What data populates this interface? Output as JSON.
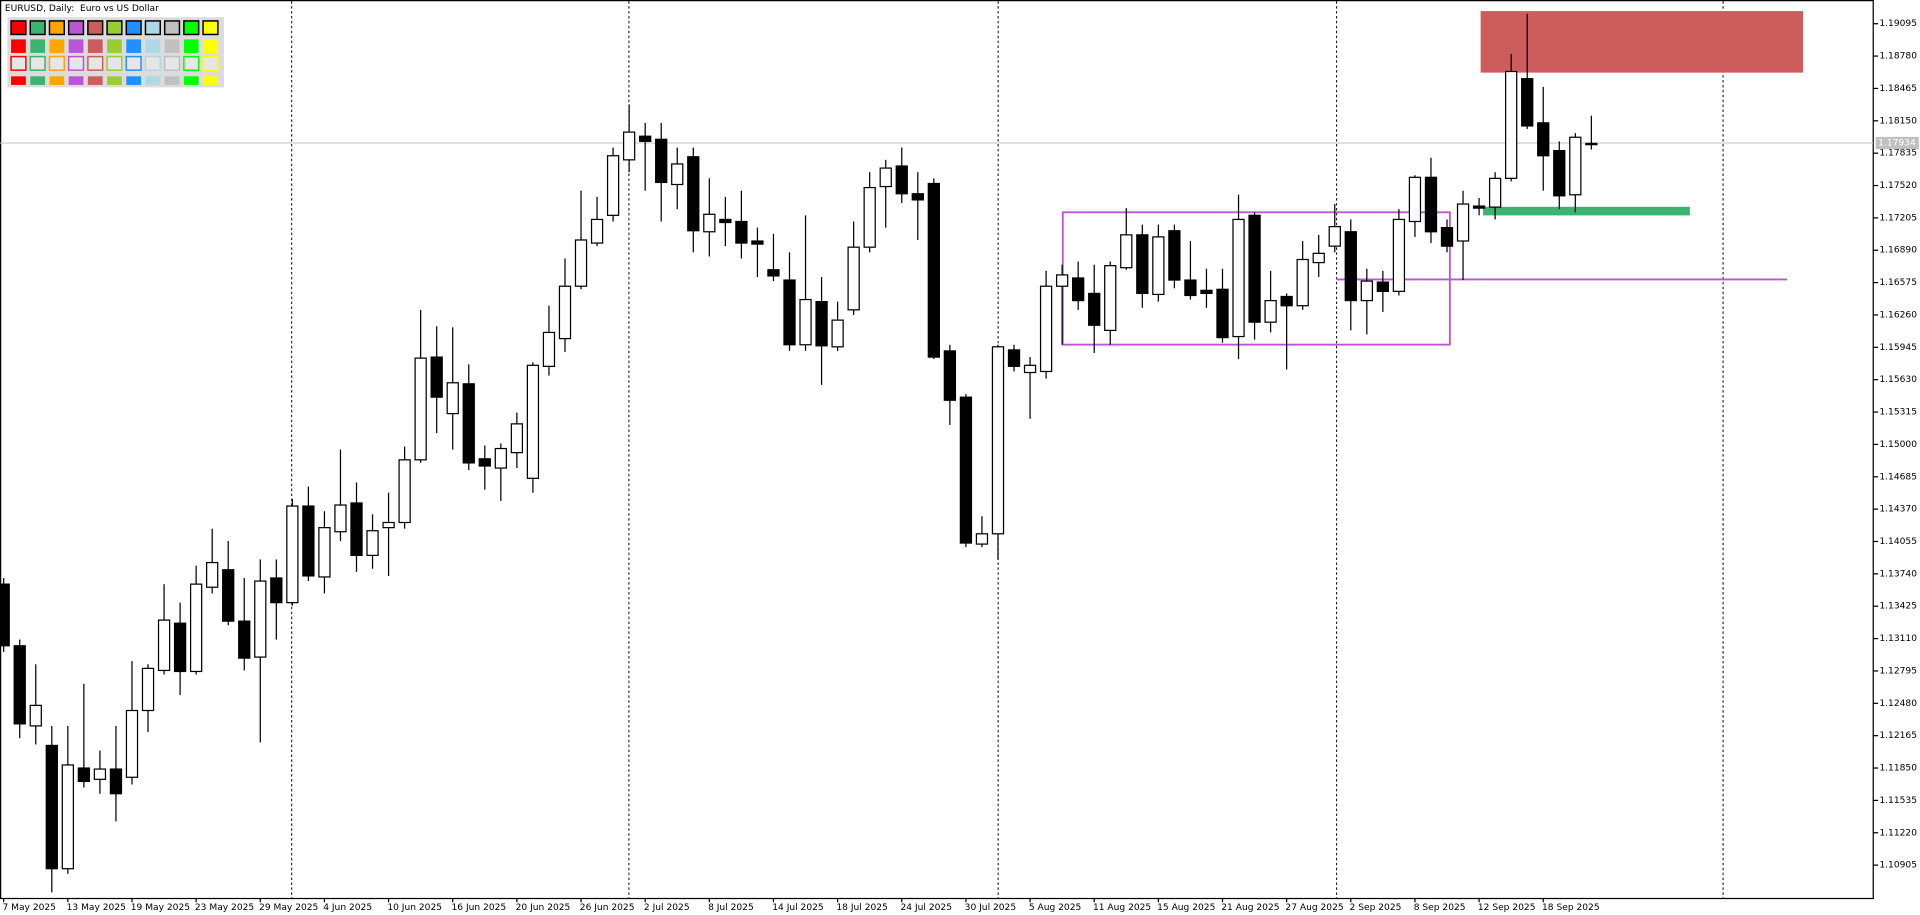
{
  "chart_data": {
    "type": "candlestick",
    "title": "EURUSD, Daily:  Euro vs US Dollar",
    "categories": [
      "7 May 2025",
      null,
      null,
      null,
      "13 May 2025",
      null,
      null,
      null,
      "19 May 2025",
      null,
      null,
      null,
      "23 May 2025",
      null,
      null,
      null,
      "29 May 2025",
      null,
      null,
      null,
      "4 Jun 2025",
      null,
      null,
      null,
      "10 Jun 2025",
      null,
      null,
      null,
      "16 Jun 2025",
      null,
      null,
      null,
      "20 Jun 2025",
      null,
      null,
      null,
      "26 Jun 2025",
      null,
      null,
      null,
      "2 Jul 2025",
      null,
      null,
      null,
      "8 Jul 2025",
      null,
      null,
      null,
      "14 Jul 2025",
      null,
      null,
      null,
      "18 Jul 2025",
      null,
      null,
      null,
      "24 Jul 2025",
      null,
      null,
      null,
      "30 Jul 2025",
      null,
      null,
      null,
      "5 Aug 2025",
      null,
      null,
      null,
      "11 Aug 2025",
      null,
      null,
      null,
      "15 Aug 2025",
      null,
      null,
      null,
      "21 Aug 2025",
      null,
      null,
      null,
      "27 Aug 2025",
      null,
      null,
      null,
      "2 Sep 2025",
      null,
      null,
      null,
      "8 Sep 2025",
      null,
      null,
      null,
      "12 Sep 2025",
      null,
      null,
      null,
      "18 Sep 2025",
      null,
      null,
      null
    ],
    "open": [
      1.1364,
      1.1304,
      1.1226,
      1.1207,
      1.1087,
      1.1185,
      1.1174,
      1.1184,
      1.1176,
      1.1241,
      1.128,
      1.1326,
      1.1279,
      1.1361,
      1.1378,
      1.1328,
      1.1293,
      1.137,
      1.1346,
      1.144,
      1.1371,
      1.1415,
      1.1443,
      1.1392,
      1.1419,
      1.1424,
      1.1485,
      1.1585,
      1.153,
      1.1559,
      1.1486,
      1.1477,
      1.1492,
      1.1467,
      1.1576,
      1.1603,
      1.1654,
      1.1696,
      1.1723,
      1.1777,
      1.18,
      1.1797,
      1.1753,
      1.178,
      1.1707,
      1.1719,
      1.1717,
      1.1698,
      1.167,
      1.166,
      1.1597,
      1.1639,
      1.1595,
      1.1631,
      1.1692,
      1.1751,
      1.1771,
      1.1744,
      1.1754,
      1.1591,
      1.1546,
      1.1403,
      1.1413,
      1.1592,
      1.157,
      1.1571,
      1.1654,
      1.1662,
      1.1647,
      1.1611,
      1.1672,
      1.1704,
      1.1646,
      1.1708,
      1.166,
      1.165,
      1.1651,
      1.1605,
      1.1723,
      1.1619,
      1.1644,
      1.1635,
      1.1677,
      1.1693,
      1.1707,
      1.164,
      1.1658,
      1.1649,
      1.1717,
      1.176,
      1.1711,
      1.1698,
      1.1732,
      1.1731,
      1.1759,
      1.1856,
      1.1813,
      1.1786,
      1.1743,
      1.1792
    ],
    "high": [
      1.137,
      1.131,
      1.1286,
      1.1226,
      1.1226,
      1.1267,
      1.1202,
      1.1226,
      1.1289,
      1.1286,
      1.1364,
      1.1346,
      1.1382,
      1.1418,
      1.1406,
      1.137,
      1.1388,
      1.1388,
      1.1447,
      1.1459,
      1.1435,
      1.1495,
      1.1463,
      1.1432,
      1.1453,
      1.1498,
      1.1631,
      1.1615,
      1.1614,
      1.1578,
      1.1499,
      1.1501,
      1.1531,
      1.158,
      1.1635,
      1.1681,
      1.1747,
      1.1741,
      1.1789,
      1.1831,
      1.1813,
      1.1813,
      1.1789,
      1.1789,
      1.1759,
      1.1741,
      1.1747,
      1.1711,
      1.1705,
      1.1687,
      1.1723,
      1.1663,
      1.1639,
      1.1717,
      1.1765,
      1.1777,
      1.1789,
      1.1765,
      1.1759,
      1.1597,
      1.1549,
      1.143,
      1.1597,
      1.1597,
      1.1585,
      1.1669,
      1.1675,
      1.1678,
      1.1675,
      1.1678,
      1.173,
      1.1714,
      1.1714,
      1.1714,
      1.1698,
      1.1671,
      1.1671,
      1.1743,
      1.1726,
      1.1669,
      1.1647,
      1.1698,
      1.1704,
      1.1734,
      1.1719,
      1.1671,
      1.1669,
      1.1729,
      1.1762,
      1.1779,
      1.1719,
      1.1747,
      1.174,
      1.1765,
      1.188,
      1.1919,
      1.1848,
      1.1795,
      1.1803,
      1.182
    ],
    "low": [
      1.1298,
      1.1214,
      1.1208,
      1.1064,
      1.1082,
      1.1166,
      1.116,
      1.1133,
      1.1169,
      1.122,
      1.1276,
      1.1256,
      1.1276,
      1.1355,
      1.1324,
      1.128,
      1.121,
      1.131,
      1.1343,
      1.1367,
      1.1355,
      1.1406,
      1.1376,
      1.1379,
      1.1372,
      1.1418,
      1.1482,
      1.1511,
      1.1495,
      1.1475,
      1.1456,
      1.1445,
      1.1477,
      1.1453,
      1.1567,
      1.159,
      1.1651,
      1.1693,
      1.1717,
      1.1765,
      1.1747,
      1.1717,
      1.1729,
      1.1687,
      1.1683,
      1.1693,
      1.1681,
      1.1663,
      1.1659,
      1.1591,
      1.1591,
      1.1558,
      1.1591,
      1.1626,
      1.1687,
      1.1711,
      1.1735,
      1.1699,
      1.1583,
      1.1519,
      1.14,
      1.14,
      1.1388,
      1.1571,
      1.1525,
      1.1564,
      1.1597,
      1.1631,
      1.1589,
      1.1597,
      1.167,
      1.1633,
      1.1639,
      1.1652,
      1.1641,
      1.1633,
      1.1599,
      1.1583,
      1.1602,
      1.1609,
      1.1573,
      1.1631,
      1.1663,
      1.1687,
      1.1611,
      1.1607,
      1.1629,
      1.1645,
      1.1702,
      1.1696,
      1.1687,
      1.166,
      1.1723,
      1.1719,
      1.1756,
      1.1807,
      1.1747,
      1.1729,
      1.1726,
      1.1787
    ],
    "close": [
      1.1304,
      1.1228,
      1.1246,
      1.1087,
      1.1188,
      1.1172,
      1.1184,
      1.116,
      1.1241,
      1.1282,
      1.1329,
      1.1279,
      1.1364,
      1.1385,
      1.1328,
      1.1292,
      1.1367,
      1.1346,
      1.144,
      1.1372,
      1.1419,
      1.1441,
      1.1392,
      1.1416,
      1.1424,
      1.1485,
      1.1584,
      1.1546,
      1.156,
      1.1482,
      1.1479,
      1.1496,
      1.152,
      1.1577,
      1.1609,
      1.1654,
      1.1699,
      1.1719,
      1.1781,
      1.1804,
      1.1795,
      1.1755,
      1.1773,
      1.1708,
      1.1724,
      1.1716,
      1.1696,
      1.1695,
      1.1664,
      1.1597,
      1.1641,
      1.1596,
      1.1621,
      1.1692,
      1.175,
      1.1769,
      1.1744,
      1.1738,
      1.1585,
      1.1543,
      1.1404,
      1.1413,
      1.1595,
      1.1576,
      1.1577,
      1.1654,
      1.1665,
      1.164,
      1.1616,
      1.1674,
      1.1704,
      1.1647,
      1.1702,
      1.166,
      1.1645,
      1.1647,
      1.1604,
      1.1719,
      1.1619,
      1.164,
      1.1635,
      1.168,
      1.1686,
      1.1712,
      1.164,
      1.1659,
      1.1649,
      1.1719,
      1.176,
      1.1707,
      1.1693,
      1.1734,
      1.173,
      1.1759,
      1.1863,
      1.181,
      1.1781,
      1.1742,
      1.1799,
      1.1793
    ],
    "up_color": "#ffffff",
    "down_color": "#000000",
    "bid": 1.17934,
    "ylim": [
      1.1058,
      1.1929
    ],
    "yticks": [
      1.19095,
      {
        "value": 1.1878,
        "label": "1.18780"
      },
      1.18465,
      {
        "value": 1.1815,
        "label": "1.18150"
      },
      1.17835,
      {
        "value": 1.1752,
        "label": "1.17520"
      },
      1.17205,
      {
        "value": 1.1689,
        "label": "1.16890"
      },
      1.16575,
      {
        "value": 1.1626,
        "label": "1.16260"
      },
      1.15945,
      {
        "value": 1.1563,
        "label": "1.15630"
      },
      1.15315,
      {
        "value": 1.15,
        "label": "1.15000"
      },
      1.14685,
      {
        "value": 1.1437,
        "label": "1.14370"
      },
      1.14055,
      {
        "value": 1.1374,
        "label": "1.13740"
      },
      1.13425,
      {
        "value": 1.1311,
        "label": "1.13110"
      },
      1.12795,
      {
        "value": 1.1248,
        "label": "1.12480"
      },
      1.12165,
      {
        "value": 1.1185,
        "label": "1.11850"
      },
      1.11535,
      {
        "value": 1.1122,
        "label": "1.11220"
      },
      1.10905
    ],
    "grid": false
  }
}
